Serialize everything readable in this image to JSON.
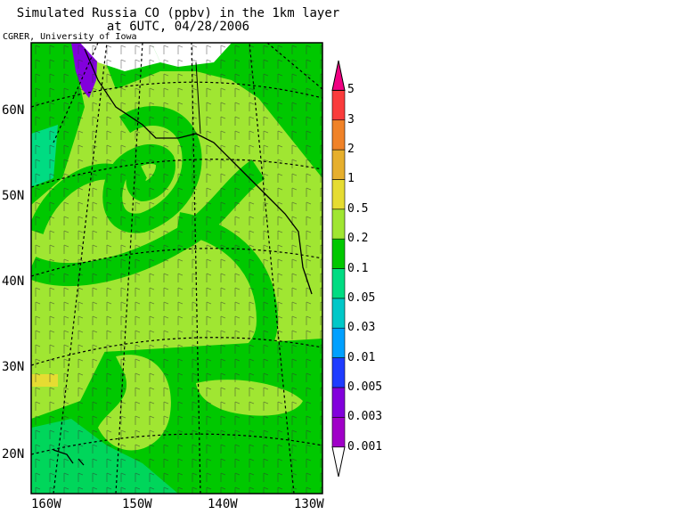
{
  "title_line1": "Simulated Russia CO (ppbv) in the 1km layer",
  "title_line2": "at 6UTC, 04/28/2006",
  "credit": "CGRER, University of Iowa",
  "lat_labels": [
    "60N",
    "50N",
    "40N",
    "30N",
    "20N"
  ],
  "lon_labels": [
    "160W",
    "150W",
    "140W",
    "130W"
  ],
  "colorbar": {
    "levels": [
      "0.001",
      "0.003",
      "0.005",
      "0.01",
      "0.03",
      "0.05",
      "0.1",
      "0.2",
      "0.5",
      "1",
      "2",
      "3",
      "5"
    ],
    "colors": [
      "#a000c8",
      "#8200dc",
      "#1e3cff",
      "#00a0ff",
      "#00c8c8",
      "#00dc82",
      "#00c800",
      "#a0e632",
      "#e6dc32",
      "#e6af2d",
      "#f08228",
      "#fa3c3c",
      "#f00082"
    ]
  },
  "colors": {
    "light_green": "#a0e632",
    "green": "#00c800",
    "teal": "#00dc82",
    "yellow": "#e6dc32",
    "purple": "#8200dc"
  }
}
